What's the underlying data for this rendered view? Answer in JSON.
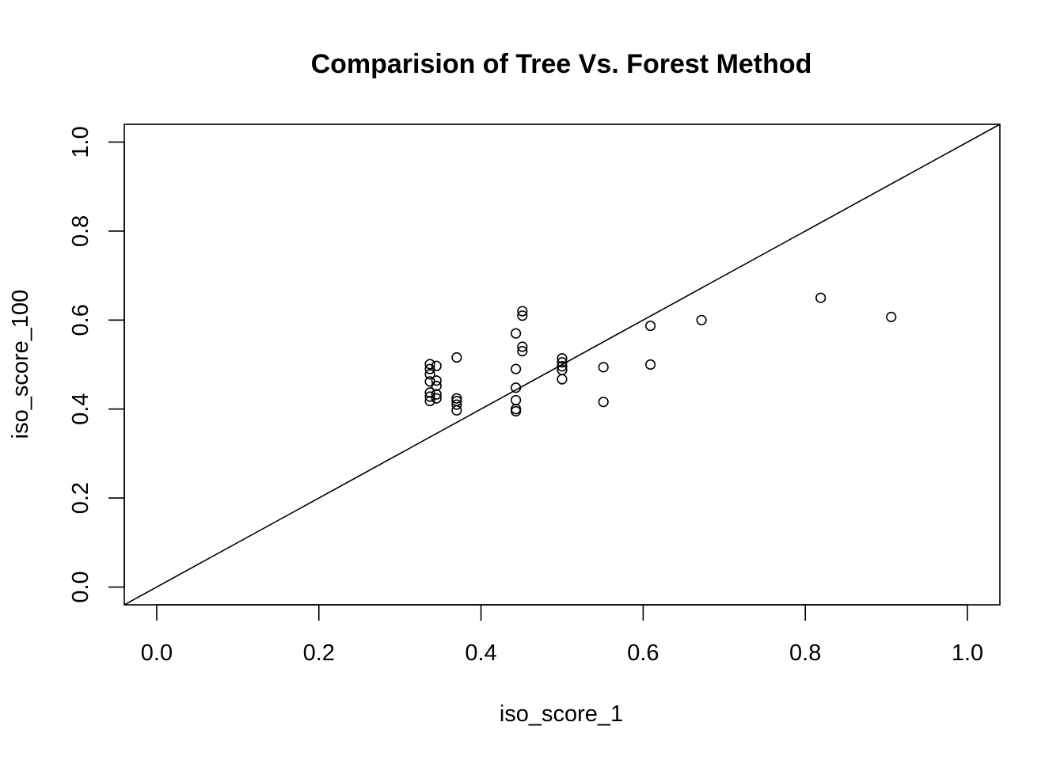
{
  "chart_data": {
    "type": "scatter",
    "title": "Comparision of Tree Vs. Forest Method",
    "xlabel": "iso_score_1",
    "ylabel": "iso_score_100",
    "xlim": [
      -0.04,
      1.04
    ],
    "ylim": [
      -0.04,
      1.04
    ],
    "x_ticks": [
      0.0,
      0.2,
      0.4,
      0.6,
      0.8,
      1.0
    ],
    "x_tick_labels": [
      "0.0",
      "0.2",
      "0.4",
      "0.6",
      "0.8",
      "1.0"
    ],
    "y_ticks": [
      0.0,
      0.2,
      0.4,
      0.6,
      0.8,
      1.0
    ],
    "y_tick_labels": [
      "0.0",
      "0.2",
      "0.4",
      "0.6",
      "0.8",
      "1.0"
    ],
    "grid": false,
    "reference_line": {
      "intercept": 0,
      "slope": 1
    },
    "points": [
      {
        "x": 0.337,
        "y": 0.501
      },
      {
        "x": 0.337,
        "y": 0.49
      },
      {
        "x": 0.337,
        "y": 0.478
      },
      {
        "x": 0.337,
        "y": 0.462
      },
      {
        "x": 0.337,
        "y": 0.437
      },
      {
        "x": 0.337,
        "y": 0.428
      },
      {
        "x": 0.337,
        "y": 0.418
      },
      {
        "x": 0.345,
        "y": 0.497
      },
      {
        "x": 0.345,
        "y": 0.464
      },
      {
        "x": 0.345,
        "y": 0.452
      },
      {
        "x": 0.345,
        "y": 0.433
      },
      {
        "x": 0.345,
        "y": 0.424
      },
      {
        "x": 0.37,
        "y": 0.516
      },
      {
        "x": 0.37,
        "y": 0.424
      },
      {
        "x": 0.37,
        "y": 0.418
      },
      {
        "x": 0.37,
        "y": 0.41
      },
      {
        "x": 0.37,
        "y": 0.397
      },
      {
        "x": 0.443,
        "y": 0.57
      },
      {
        "x": 0.443,
        "y": 0.49
      },
      {
        "x": 0.443,
        "y": 0.448
      },
      {
        "x": 0.443,
        "y": 0.42
      },
      {
        "x": 0.443,
        "y": 0.4
      },
      {
        "x": 0.443,
        "y": 0.395
      },
      {
        "x": 0.451,
        "y": 0.62
      },
      {
        "x": 0.451,
        "y": 0.61
      },
      {
        "x": 0.451,
        "y": 0.54
      },
      {
        "x": 0.451,
        "y": 0.53
      },
      {
        "x": 0.5,
        "y": 0.514
      },
      {
        "x": 0.5,
        "y": 0.505
      },
      {
        "x": 0.5,
        "y": 0.496
      },
      {
        "x": 0.5,
        "y": 0.488
      },
      {
        "x": 0.5,
        "y": 0.467
      },
      {
        "x": 0.551,
        "y": 0.494
      },
      {
        "x": 0.551,
        "y": 0.416
      },
      {
        "x": 0.609,
        "y": 0.587
      },
      {
        "x": 0.609,
        "y": 0.5
      },
      {
        "x": 0.672,
        "y": 0.6
      },
      {
        "x": 0.819,
        "y": 0.65
      },
      {
        "x": 0.906,
        "y": 0.607
      }
    ]
  }
}
